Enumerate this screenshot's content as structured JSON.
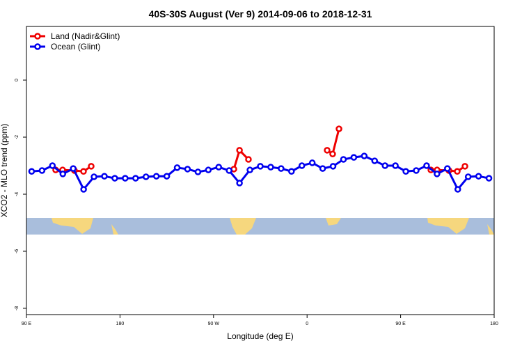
{
  "chart_data": {
    "type": "line",
    "title": "40S-30S August (Ver 9)   2014-09-06 to 2018-12-31",
    "x_label": "Longitude (deg E)",
    "y_label": "XCO2 - MLO trend (ppm)",
    "xlim": [
      90,
      540
    ],
    "xticks": [
      {
        "value": 90,
        "label": "90 E"
      },
      {
        "value": 180,
        "label": "180"
      },
      {
        "value": 270,
        "label": "90 W"
      },
      {
        "value": 360,
        "label": "0"
      },
      {
        "value": 450,
        "label": "90 E"
      },
      {
        "value": 540,
        "label": "180"
      }
    ],
    "ylim": [
      -8.22,
      1.88
    ],
    "yticks": [
      0,
      -2,
      -4,
      -6,
      -8
    ],
    "legend": "top-left",
    "series": [
      {
        "name": "Land (Nadir&Glint)",
        "color": "#ee0000",
        "x": [
          118.1,
          124.8,
          136.2,
          144.9,
          152.3,
          null,
          289.6,
          295.0,
          303.6,
          null,
          379.3,
          384.6,
          390.7,
          null,
          479.1,
          485.1,
          496.5,
          504.5,
          511.9
        ],
        "values": [
          -3.15,
          -3.15,
          -3.17,
          -3.2,
          -3.02,
          null,
          -3.12,
          -2.46,
          -2.78,
          null,
          -2.46,
          -2.59,
          -1.71,
          null,
          -3.15,
          -3.15,
          -3.17,
          -3.2,
          -3.02
        ]
      },
      {
        "name": "Ocean (Glint)",
        "color": "#0000ee",
        "x": [
          95,
          105,
          115,
          125,
          135,
          145,
          155,
          165,
          175,
          185,
          195,
          205,
          215,
          225,
          235,
          245,
          255,
          265,
          275,
          285,
          295,
          305,
          315,
          325,
          335,
          345,
          355,
          365,
          375,
          385,
          395,
          405,
          415,
          425,
          435,
          445,
          455,
          465,
          475,
          485,
          495,
          505,
          515,
          525,
          535
        ],
        "values": [
          -3.2,
          -3.17,
          -3.0,
          -3.29,
          -3.1,
          -3.83,
          -3.39,
          -3.37,
          -3.44,
          -3.44,
          -3.44,
          -3.39,
          -3.37,
          -3.37,
          -3.07,
          -3.12,
          -3.22,
          -3.15,
          -3.05,
          -3.17,
          -3.61,
          -3.15,
          -3.02,
          -3.05,
          -3.1,
          -3.2,
          -3.0,
          -2.9,
          -3.1,
          -3.02,
          -2.78,
          -2.71,
          -2.66,
          -2.83,
          -3.0,
          -3.0,
          -3.2,
          -3.17,
          -3.0,
          -3.29,
          -3.1,
          -3.83,
          -3.39,
          -3.37,
          -3.44
        ]
      }
    ]
  }
}
